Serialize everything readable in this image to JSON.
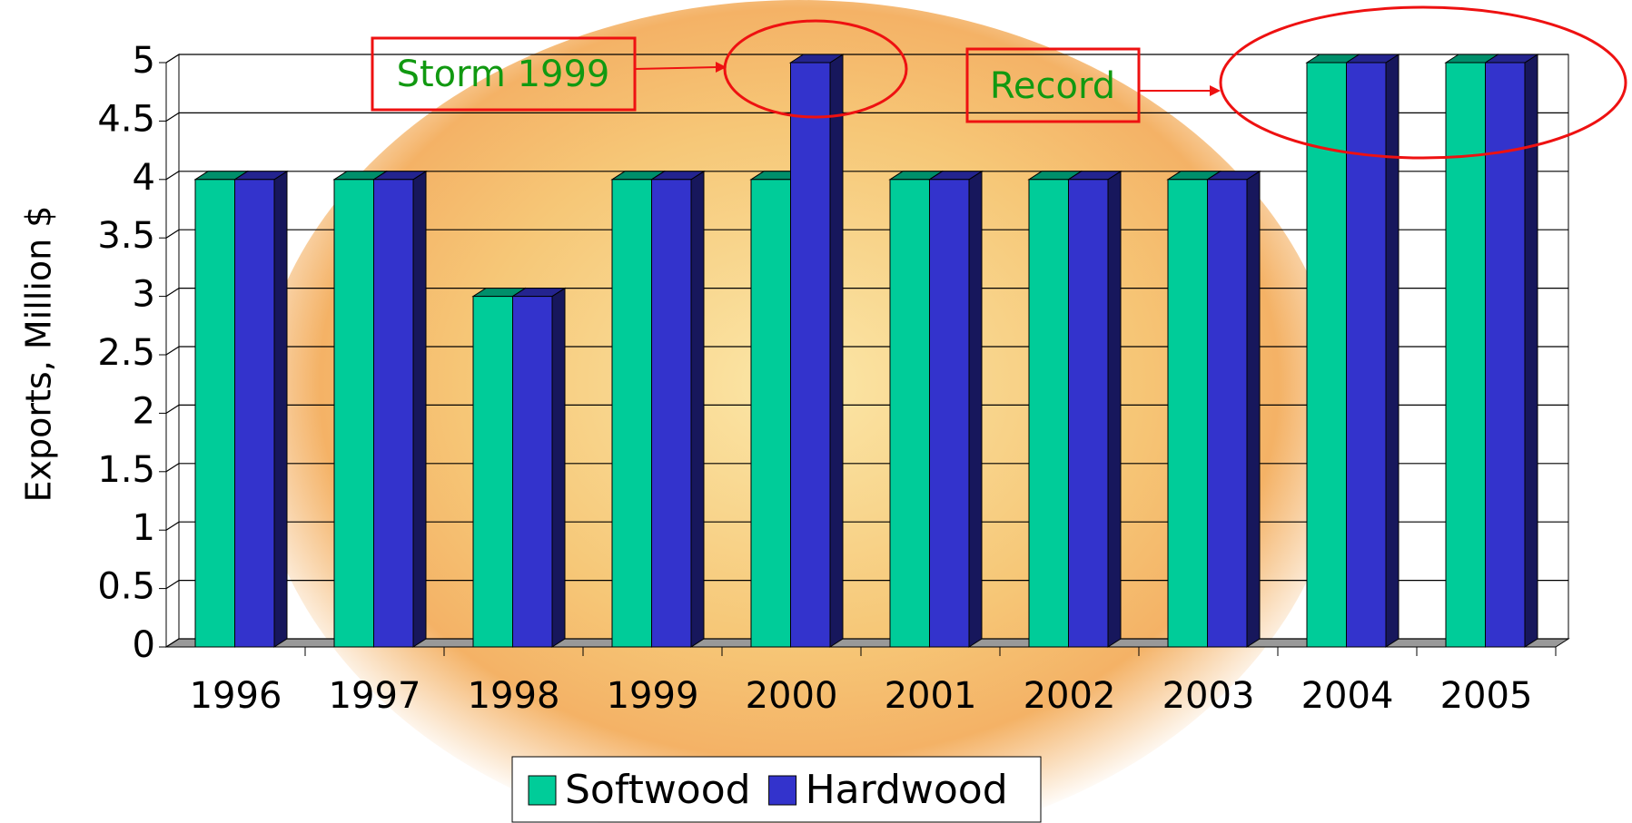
{
  "chart_data": {
    "type": "bar3d",
    "y_label": "Exports, Million $",
    "categories": [
      "1996",
      "1997",
      "1998",
      "1999",
      "2000",
      "2001",
      "2002",
      "2003",
      "2004",
      "2005"
    ],
    "series": [
      {
        "name": "Softwood",
        "color": "#00cc99",
        "values": [
          4,
          4,
          3,
          4,
          4,
          4,
          4,
          4,
          5,
          5
        ]
      },
      {
        "name": "Hardwood",
        "color": "#3333cc",
        "values": [
          4,
          4,
          3,
          4,
          5,
          4,
          4,
          4,
          5,
          5
        ]
      }
    ],
    "ylim": [
      0,
      5
    ],
    "yticks": [
      0,
      0.5,
      1,
      1.5,
      2,
      2.5,
      3,
      3.5,
      4,
      4.5,
      5
    ],
    "grid": true,
    "legend": "bottom",
    "annotations": [
      "Storm 1999",
      "Record"
    ]
  }
}
